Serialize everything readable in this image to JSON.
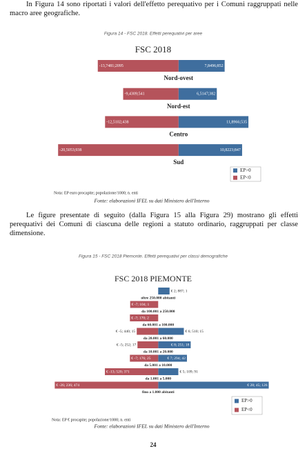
{
  "paragraph_1": "In Figura 14 sono riportati i valori dell'effetto perequativo per i Comuni raggruppati nelle macro aree geografiche.",
  "figure_14": {
    "caption": "Figura 14 - FSC 2018. Effetti perequativi per aree",
    "note": "Nota: EP euro procapite; popolazione/1000; n. enti",
    "source": "Fonte: elaborazioni IFEL su dati Ministero dell'Interno",
    "chart": {
      "type": "diverging-bar",
      "title": "FSC 2018",
      "categories": [
        "Nord-ovest",
        "Nord-est",
        "Centro",
        "Sud"
      ],
      "xlim": [
        -21,
        14
      ],
      "series": [
        {
          "name": "EP>0",
          "color": "#3f6e9e",
          "values": [
            7.8496,
            6.5147,
            11.8966,
            10.8223
          ],
          "value_labels": [
            "7,8496;852",
            "6,5147;382",
            "11,8966;535",
            "10,8223;847"
          ]
        },
        {
          "name": "EP<0",
          "color": "#b5535b",
          "values": [
            -13.7481,
            -9.4309,
            -12.5102,
            -20.5053
          ],
          "value_labels": [
            "-13,7481;2095",
            "-9,4309;541",
            "-12,5102;438",
            "-20,5053;938"
          ]
        }
      ]
    }
  },
  "paragraph_2": "Le figure presentate di seguito (dalla Figura 15 alla Figura 29) mostrano gli effetti perequativi dei Comuni di ciascuna delle regioni a statuto ordinario, raggruppati per classe dimensione.",
  "figure_15": {
    "caption": "Figura 15 - FSC 2018 Piemonte. Effetti perequativi per classi demografiche",
    "note": "Nota: EP € procapite; popolazione/1000; n. enti",
    "source": "Fonte: elaborazioni IFEL su dati Ministero dell'Interno",
    "chart": {
      "type": "diverging-bar",
      "title": "FSC 2018 PIEMONTE",
      "categories": [
        "oltre 250.000 abitanti",
        "da 100.001 a 250.000",
        "da 60.001 a 100.000",
        "da 20.001 a 60.000",
        "da 10.001 a 20.000",
        "da 5.001 a 10.000",
        "da 1.001 a 5.000",
        "fino a 1.000 abitanti"
      ],
      "xlim": [
        -27,
        29
      ],
      "series": [
        {
          "name": "EP>0",
          "color": "#3f6e9e",
          "values": [
            2.887,
            null,
            null,
            6.51,
            8.251,
            7.294,
            5.109,
            28.045
          ],
          "value_labels": [
            "€ 2; 887; 1",
            null,
            null,
            "€ 6; 510; 15",
            "€ 8; 251; 18",
            "€ 7; 294; 42",
            "€ 5; 109; 91",
            "€ 28; 45; 126"
          ]
        },
        {
          "name": "EP<0",
          "color": "#b5535b",
          "values": [
            null,
            -7.104,
            -7.17,
            -5.44,
            -5.252,
            -7.176,
            -13.52,
            -26.236
          ],
          "value_labels": [
            null,
            "€ -7; 104; 1",
            "€ -7; 170; 2",
            "€ -5; 440; 15",
            "€ -5; 252; 17",
            "€ -7; 176; 25",
            "€ -13; 520; 371",
            "€ -26; 236; 474"
          ]
        }
      ]
    }
  },
  "page_number": "24"
}
